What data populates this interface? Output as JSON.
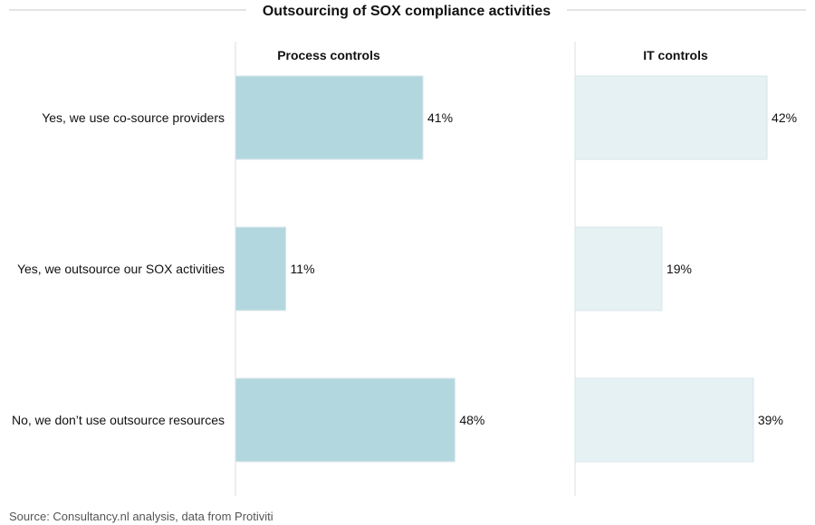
{
  "chart_data": {
    "type": "bar",
    "orientation": "horizontal",
    "title": "Outsourcing of SOX compliance activities",
    "categories": [
      "Yes, we use co-source providers",
      "Yes, we outsource our SOX activities",
      "No, we don’t use outsource resources"
    ],
    "series": [
      {
        "name": "Process controls",
        "values": [
          41,
          11,
          48
        ],
        "value_labels": [
          "41%",
          "11%",
          "48%"
        ],
        "color": "#b3d7de"
      },
      {
        "name": "IT controls",
        "values": [
          42,
          19,
          39
        ],
        "value_labels": [
          "42%",
          "19%",
          "39%"
        ],
        "color": "#e6f1f3"
      }
    ],
    "xlim": [
      0,
      50
    ],
    "unit": "%",
    "grid": false,
    "legend": "none"
  },
  "source": "Source: Consultancy.nl analysis, data from Protiviti"
}
